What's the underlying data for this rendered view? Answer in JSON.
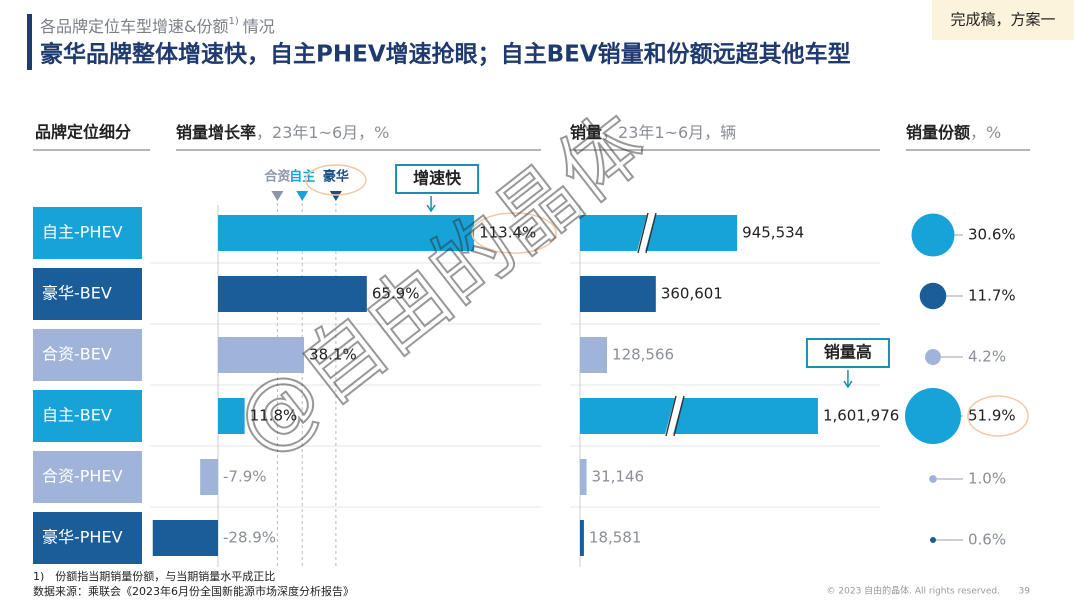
{
  "header": {
    "kicker": "各品牌定位车型增速&份额",
    "kicker_sup": "1)",
    "kicker_tail": "情况",
    "title": "豪华品牌整体增速快，自主PHEV增速抢眼；自主BEV销量和份额远超其他车型",
    "stamp": "完成稿，方案一",
    "row_header": "品牌定位细分",
    "watermark": "@自由的晶体"
  },
  "chart_data": [
    {
      "type": "bar",
      "title": "销量增长率",
      "subtitle": "，23年1~6月，%",
      "categories": [
        "自主-PHEV",
        "豪华-BEV",
        "合资-BEV",
        "自主-BEV",
        "合资-PHEV",
        "豪华-PHEV"
      ],
      "colors": [
        "#17a2d8",
        "#1a5d98",
        "#9fb4d8",
        "#17a2d8",
        "#9fb4d8",
        "#1a5d98"
      ],
      "values": [
        113.4,
        65.9,
        38.1,
        11.8,
        -7.9,
        -28.9
      ],
      "value_labels": [
        "113.4%",
        "65.9%",
        "38.1%",
        "11.8%",
        "-7.9%",
        "-28.9%"
      ],
      "xlim": [
        -31,
        120
      ],
      "reference_lines": [
        {
          "name": "合资",
          "value": 26.3,
          "color": "#8c96a6"
        },
        {
          "name": "自主",
          "value": 37.3,
          "color": "#17a2d8"
        },
        {
          "name": "豪华",
          "value": 52.2,
          "color": "#1a4f86"
        }
      ],
      "annotation": "增速快"
    },
    {
      "type": "bar",
      "title": "销量",
      "subtitle": "，23年1~6月，辆",
      "values": [
        945534,
        360601,
        128566,
        1601976,
        31146,
        18581
      ],
      "value_labels": [
        "945,534",
        "360,601",
        "128,566",
        "1,601,976",
        "31,146",
        "18,581"
      ],
      "xlim": [
        0,
        1700000
      ],
      "annotation": "销量高"
    },
    {
      "type": "bubble",
      "title": "销量份额",
      "subtitle": "，%",
      "values": [
        30.6,
        11.7,
        4.2,
        51.9,
        1.0,
        0.6
      ],
      "value_labels": [
        "30.6%",
        "11.7%",
        "4.2%",
        "51.9%",
        "1.0%",
        "0.6%"
      ]
    }
  ],
  "footer": {
    "note": "1)　份额指当期销量份额，与当期销量水平成正比",
    "source": "数据来源：乘联会《2023年6月份全国新能源市场深度分析报告》",
    "copyright": "© 2023 自由的晶体. All rights reserved.",
    "page": "39"
  }
}
